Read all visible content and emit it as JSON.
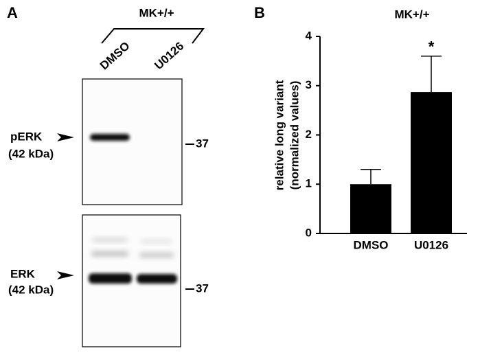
{
  "panel_a": {
    "label": "A",
    "title": "MK+/+",
    "lanes": [
      "DMSO",
      "U0126"
    ],
    "blots": [
      {
        "target": "pERK",
        "size": "(42 kDa)",
        "marker": 37
      },
      {
        "target": "ERK",
        "size": "(42 kDa)",
        "marker": 37
      }
    ]
  },
  "chart_data": {
    "type": "bar",
    "label": "B",
    "title": "MK+/+",
    "ylabel": [
      "relative long variant",
      "(normalized values)"
    ],
    "categories": [
      "DMSO",
      "U0126"
    ],
    "values": [
      1.0,
      2.87
    ],
    "errors": [
      0.3,
      0.73
    ],
    "color": "#000000",
    "ylim": [
      0,
      4
    ],
    "yticks": [
      0,
      1,
      2,
      3,
      4
    ],
    "annotations": [
      {
        "category": 1,
        "text": "*"
      }
    ]
  }
}
